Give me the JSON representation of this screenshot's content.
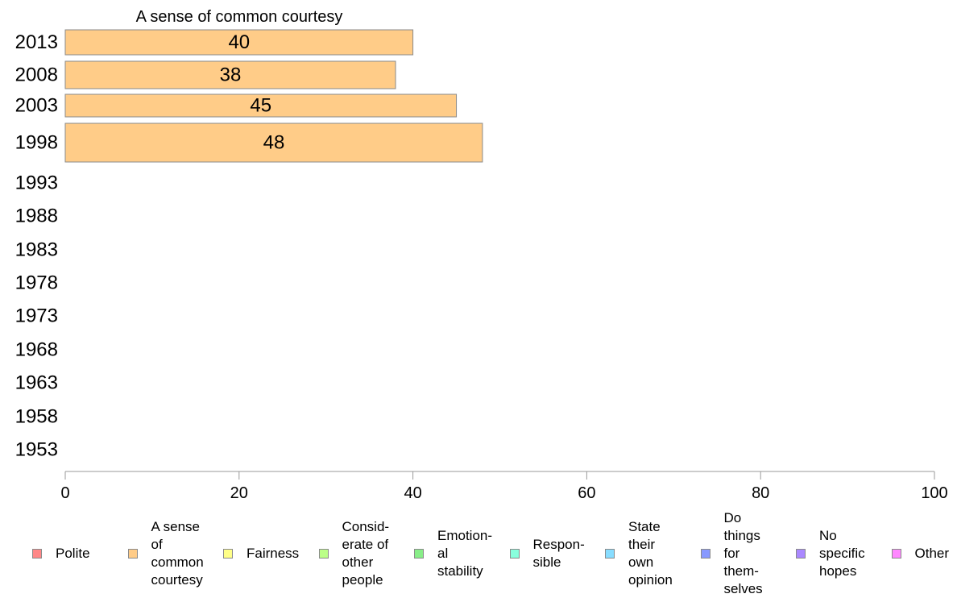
{
  "chart_data": {
    "type": "bar",
    "orientation": "horizontal",
    "title": "A sense of common courtesy",
    "categories": [
      "2013",
      "2008",
      "2003",
      "1998",
      "1993",
      "1988",
      "1983",
      "1978",
      "1973",
      "1968",
      "1963",
      "1958",
      "1953"
    ],
    "series": [
      {
        "name": "A sense of common courtesy",
        "color": "#ffcc88",
        "values": [
          40,
          38,
          45,
          48,
          null,
          null,
          null,
          null,
          null,
          null,
          null,
          null,
          null
        ]
      }
    ],
    "xlim": [
      0,
      100
    ],
    "xticks": [
      "0",
      "20",
      "40",
      "60",
      "80",
      "100"
    ],
    "grid": false,
    "legend_position": "bottom",
    "legend": [
      {
        "label": "Polite",
        "color": "#ff8888"
      },
      {
        "label": "A sense\nof\ncommon\ncourtesy",
        "color": "#ffcc88"
      },
      {
        "label": "Fairness",
        "color": "#ffff88"
      },
      {
        "label": "Consid-\nerate of\nother\npeople",
        "color": "#bbff88"
      },
      {
        "label": "Emotion-\nal\nstability",
        "color": "#88ee88"
      },
      {
        "label": "Respon-\nsible",
        "color": "#88ffdd"
      },
      {
        "label": "State\ntheir\nown\nopinion",
        "color": "#88ddff"
      },
      {
        "label": "Do\nthings\nfor\nthem-\nselves",
        "color": "#8899ff"
      },
      {
        "label": "No\nspecific\nhopes",
        "color": "#aa88ff"
      },
      {
        "label": "Other",
        "color": "#ff88ff"
      }
    ]
  }
}
